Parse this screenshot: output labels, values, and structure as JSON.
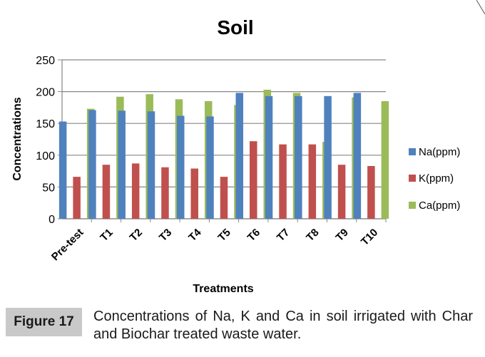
{
  "chart_data": {
    "type": "bar",
    "title": "Soil",
    "xlabel": "Treatments",
    "ylabel": "Concentrations",
    "ylim": [
      0,
      250
    ],
    "yticks": [
      0,
      50,
      100,
      150,
      200,
      250
    ],
    "grid": true,
    "legend_position": "right",
    "categories": [
      "Pre-test",
      "T1",
      "T2",
      "T3",
      "T4",
      "T5",
      "T6",
      "T7",
      "T8",
      "T9",
      "T10"
    ],
    "series": [
      {
        "name": "Na(ppm)",
        "color": "#4f81bd",
        "values": [
          153,
          171,
          170,
          169,
          162,
          161,
          198,
          193,
          193,
          193,
          198
        ]
      },
      {
        "name": "K(ppm)",
        "color": "#c0504d",
        "values": [
          66,
          85,
          87,
          81,
          79,
          66,
          122,
          117,
          117,
          85,
          83
        ]
      },
      {
        "name": "Ca(ppm)",
        "color": "#9bbb59",
        "values": [
          173,
          192,
          196,
          188,
          185,
          179,
          203,
          198,
          121,
          191,
          185
        ]
      }
    ]
  },
  "caption": {
    "label": "Figure 17",
    "text": "Concentrations of Na, K and Ca in soil irrigated with Char and Biochar treated waste water."
  }
}
